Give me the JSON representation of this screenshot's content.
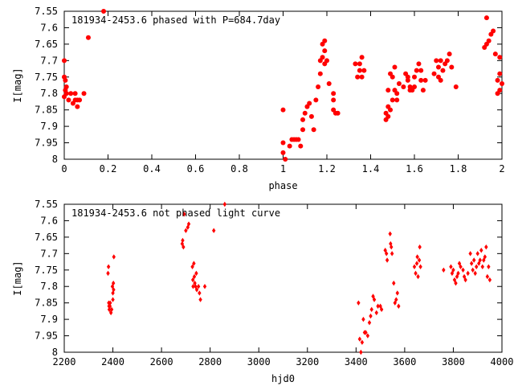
{
  "colors": {
    "marker": "#ff0000",
    "axis": "#000000",
    "background": "#ffffff"
  },
  "chart_data": [
    {
      "type": "scatter",
      "title": "181934-2453.6 phased with P=684.7day",
      "xlabel": "phase",
      "ylabel": "I[mag]",
      "xlim": [
        0,
        2
      ],
      "ylim": [
        8,
        7.55
      ],
      "y_inverted": true,
      "grid": false,
      "x_ticks": [
        "0",
        "0.2",
        "0.4",
        "0.6",
        "0.8",
        "1",
        "1.2",
        "1.4",
        "1.6",
        "1.8",
        "2"
      ],
      "y_ticks": [
        "7.55",
        "7.6",
        "7.65",
        "7.7",
        "7.75",
        "7.8",
        "7.85",
        "7.9",
        "7.95",
        "8"
      ],
      "marker": "filled-circle",
      "series": [
        {
          "points": [
            [
              0.0,
              7.7
            ],
            [
              0.0,
              7.75
            ],
            [
              0.005,
              7.76
            ],
            [
              0.005,
              7.79
            ],
            [
              0.01,
              7.78
            ],
            [
              0.01,
              7.8
            ],
            [
              0.0,
              7.81
            ],
            [
              0.02,
              7.82
            ],
            [
              0.03,
              7.8
            ],
            [
              0.04,
              7.83
            ],
            [
              0.05,
              7.8
            ],
            [
              0.05,
              7.82
            ],
            [
              0.07,
              7.82
            ],
            [
              0.06,
              7.84
            ],
            [
              0.06,
              7.82
            ],
            [
              0.09,
              7.8
            ],
            [
              0.11,
              7.63
            ],
            [
              0.18,
              7.55
            ],
            [
              1.0,
              7.85
            ],
            [
              1.0,
              7.95
            ],
            [
              1.0,
              7.98
            ],
            [
              1.01,
              8.0
            ],
            [
              1.03,
              7.96
            ],
            [
              1.04,
              7.94
            ],
            [
              1.05,
              7.94
            ],
            [
              1.06,
              7.94
            ],
            [
              1.07,
              7.94
            ],
            [
              1.08,
              7.96
            ],
            [
              1.09,
              7.91
            ],
            [
              1.09,
              7.88
            ],
            [
              1.1,
              7.86
            ],
            [
              1.11,
              7.84
            ],
            [
              1.12,
              7.83
            ],
            [
              1.13,
              7.87
            ],
            [
              1.14,
              7.91
            ],
            [
              1.15,
              7.82
            ],
            [
              1.16,
              7.78
            ],
            [
              1.17,
              7.74
            ],
            [
              1.17,
              7.7
            ],
            [
              1.18,
              7.65
            ],
            [
              1.18,
              7.69
            ],
            [
              1.19,
              7.64
            ],
            [
              1.19,
              7.67
            ],
            [
              1.19,
              7.71
            ],
            [
              1.2,
              7.7
            ],
            [
              1.21,
              7.77
            ],
            [
              1.23,
              7.8
            ],
            [
              1.23,
              7.82
            ],
            [
              1.23,
              7.85
            ],
            [
              1.24,
              7.86
            ],
            [
              1.25,
              7.86
            ],
            [
              1.33,
              7.71
            ],
            [
              1.34,
              7.75
            ],
            [
              1.35,
              7.71
            ],
            [
              1.35,
              7.73
            ],
            [
              1.36,
              7.69
            ],
            [
              1.36,
              7.75
            ],
            [
              1.37,
              7.73
            ],
            [
              1.47,
              7.86
            ],
            [
              1.47,
              7.88
            ],
            [
              1.48,
              7.79
            ],
            [
              1.48,
              7.84
            ],
            [
              1.48,
              7.87
            ],
            [
              1.49,
              7.74
            ],
            [
              1.49,
              7.85
            ],
            [
              1.5,
              7.82
            ],
            [
              1.5,
              7.75
            ],
            [
              1.51,
              7.72
            ],
            [
              1.51,
              7.79
            ],
            [
              1.52,
              7.8
            ],
            [
              1.52,
              7.82
            ],
            [
              1.53,
              7.77
            ],
            [
              1.55,
              7.78
            ],
            [
              1.56,
              7.74
            ],
            [
              1.57,
              7.75
            ],
            [
              1.57,
              7.76
            ],
            [
              1.58,
              7.78
            ],
            [
              1.58,
              7.79
            ],
            [
              1.59,
              7.79
            ],
            [
              1.6,
              7.78
            ],
            [
              1.6,
              7.75
            ],
            [
              1.61,
              7.73
            ],
            [
              1.62,
              7.71
            ],
            [
              1.63,
              7.73
            ],
            [
              1.63,
              7.76
            ],
            [
              1.64,
              7.79
            ],
            [
              1.65,
              7.76
            ],
            [
              1.69,
              7.74
            ],
            [
              1.7,
              7.7
            ],
            [
              1.71,
              7.72
            ],
            [
              1.71,
              7.75
            ],
            [
              1.72,
              7.76
            ],
            [
              1.72,
              7.7
            ],
            [
              1.73,
              7.73
            ],
            [
              1.74,
              7.71
            ],
            [
              1.75,
              7.7
            ],
            [
              1.76,
              7.68
            ],
            [
              1.77,
              7.72
            ],
            [
              1.79,
              7.78
            ],
            [
              1.92,
              7.66
            ],
            [
              1.93,
              7.65
            ],
            [
              1.93,
              7.57
            ],
            [
              1.94,
              7.64
            ],
            [
              1.95,
              7.62
            ],
            [
              1.96,
              7.61
            ],
            [
              1.97,
              7.68
            ],
            [
              1.98,
              7.76
            ],
            [
              1.98,
              7.8
            ],
            [
              1.99,
              7.69
            ],
            [
              1.99,
              7.74
            ],
            [
              1.99,
              7.79
            ],
            [
              2.0,
              7.77
            ]
          ]
        }
      ]
    },
    {
      "type": "scatter",
      "title": "181934-2453.6 not phased light curve",
      "xlabel": "hjd0",
      "ylabel": "I[mag]",
      "xlim": [
        2200,
        4000
      ],
      "ylim": [
        8,
        7.55
      ],
      "y_inverted": true,
      "grid": false,
      "x_ticks": [
        "2200",
        "2400",
        "2600",
        "2800",
        "3000",
        "3200",
        "3400",
        "3600",
        "3800",
        "4000"
      ],
      "y_ticks": [
        "7.55",
        "7.6",
        "7.65",
        "7.7",
        "7.75",
        "7.8",
        "7.85",
        "7.9",
        "7.95",
        "8"
      ],
      "marker": "diamond",
      "series": [
        {
          "points": [
            [
              2380,
              7.76
            ],
            [
              2382,
              7.74
            ],
            [
              2383,
              7.85
            ],
            [
              2384,
              7.86
            ],
            [
              2385,
              7.87
            ],
            [
              2386,
              7.87
            ],
            [
              2388,
              7.86
            ],
            [
              2389,
              7.85
            ],
            [
              2392,
              7.88
            ],
            [
              2395,
              7.87
            ],
            [
              2398,
              7.8
            ],
            [
              2400,
              7.82
            ],
            [
              2400,
              7.84
            ],
            [
              2402,
              7.79
            ],
            [
              2403,
              7.81
            ],
            [
              2404,
              7.71
            ],
            [
              2685,
              7.67
            ],
            [
              2687,
              7.66
            ],
            [
              2690,
              7.68
            ],
            [
              2693,
              7.58
            ],
            [
              2700,
              7.63
            ],
            [
              2708,
              7.62
            ],
            [
              2712,
              7.61
            ],
            [
              2727,
              7.74
            ],
            [
              2729,
              7.78
            ],
            [
              2730,
              7.8
            ],
            [
              2733,
              7.73
            ],
            [
              2735,
              7.77
            ],
            [
              2737,
              7.79
            ],
            [
              2740,
              7.8
            ],
            [
              2743,
              7.76
            ],
            [
              2745,
              7.81
            ],
            [
              2752,
              7.8
            ],
            [
              2756,
              7.82
            ],
            [
              2760,
              7.84
            ],
            [
              2778,
              7.8
            ],
            [
              2815,
              7.63
            ],
            [
              2860,
              7.55
            ],
            [
              3410,
              7.85
            ],
            [
              3415,
              7.96
            ],
            [
              3420,
              8.0
            ],
            [
              3425,
              7.97
            ],
            [
              3430,
              7.9
            ],
            [
              3435,
              7.94
            ],
            [
              3440,
              7.94
            ],
            [
              3448,
              7.95
            ],
            [
              3455,
              7.91
            ],
            [
              3460,
              7.89
            ],
            [
              3464,
              7.87
            ],
            [
              3470,
              7.83
            ],
            [
              3475,
              7.84
            ],
            [
              3484,
              7.88
            ],
            [
              3490,
              7.86
            ],
            [
              3500,
              7.86
            ],
            [
              3505,
              7.87
            ],
            [
              3520,
              7.69
            ],
            [
              3525,
              7.7
            ],
            [
              3528,
              7.72
            ],
            [
              3540,
              7.64
            ],
            [
              3542,
              7.67
            ],
            [
              3545,
              7.68
            ],
            [
              3548,
              7.7
            ],
            [
              3555,
              7.79
            ],
            [
              3560,
              7.85
            ],
            [
              3565,
              7.84
            ],
            [
              3570,
              7.82
            ],
            [
              3575,
              7.86
            ],
            [
              3640,
              7.74
            ],
            [
              3645,
              7.76
            ],
            [
              3650,
              7.73
            ],
            [
              3652,
              7.71
            ],
            [
              3655,
              7.77
            ],
            [
              3660,
              7.72
            ],
            [
              3662,
              7.68
            ],
            [
              3665,
              7.74
            ],
            [
              3760,
              7.75
            ],
            [
              3790,
              7.74
            ],
            [
              3795,
              7.76
            ],
            [
              3800,
              7.75
            ],
            [
              3805,
              7.78
            ],
            [
              3810,
              7.79
            ],
            [
              3815,
              7.77
            ],
            [
              3820,
              7.76
            ],
            [
              3825,
              7.73
            ],
            [
              3830,
              7.74
            ],
            [
              3840,
              7.75
            ],
            [
              3845,
              7.77
            ],
            [
              3850,
              7.78
            ],
            [
              3860,
              7.76
            ],
            [
              3870,
              7.7
            ],
            [
              3875,
              7.73
            ],
            [
              3880,
              7.75
            ],
            [
              3885,
              7.72
            ],
            [
              3890,
              7.76
            ],
            [
              3895,
              7.74
            ],
            [
              3900,
              7.7
            ],
            [
              3905,
              7.73
            ],
            [
              3910,
              7.72
            ],
            [
              3915,
              7.69
            ],
            [
              3920,
              7.74
            ],
            [
              3925,
              7.72
            ],
            [
              3930,
              7.71
            ],
            [
              3935,
              7.68
            ],
            [
              3940,
              7.77
            ],
            [
              3945,
              7.74
            ],
            [
              3950,
              7.78
            ]
          ]
        }
      ]
    }
  ]
}
